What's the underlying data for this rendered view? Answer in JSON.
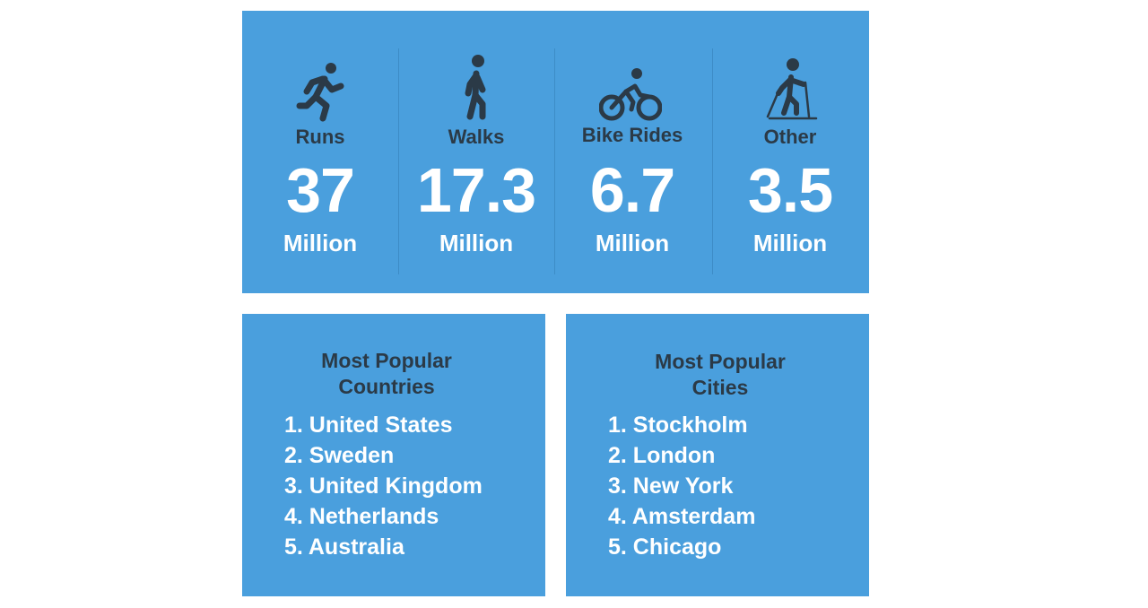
{
  "stats": [
    {
      "label": "Runs",
      "value": 37,
      "unit": "Million"
    },
    {
      "label": "Walks",
      "value": 17.3,
      "unit": "Million"
    },
    {
      "label": "Bike Rides",
      "value": 6.7,
      "unit": "Million"
    },
    {
      "label": "Other",
      "value": 3.5,
      "unit": "Million"
    }
  ],
  "countries": {
    "title": [
      "Most Popular",
      "Countries"
    ],
    "items": [
      "1. United States",
      "2. Sweden",
      "3. United Kingdom",
      "4. Netherlands",
      "5. Australia"
    ]
  },
  "cities": {
    "title": [
      "Most Popular",
      "Cities"
    ],
    "items": [
      "1. Stockholm",
      "2. London",
      "3. New York",
      "4. Amsterdam",
      "5. Chicago"
    ]
  }
}
